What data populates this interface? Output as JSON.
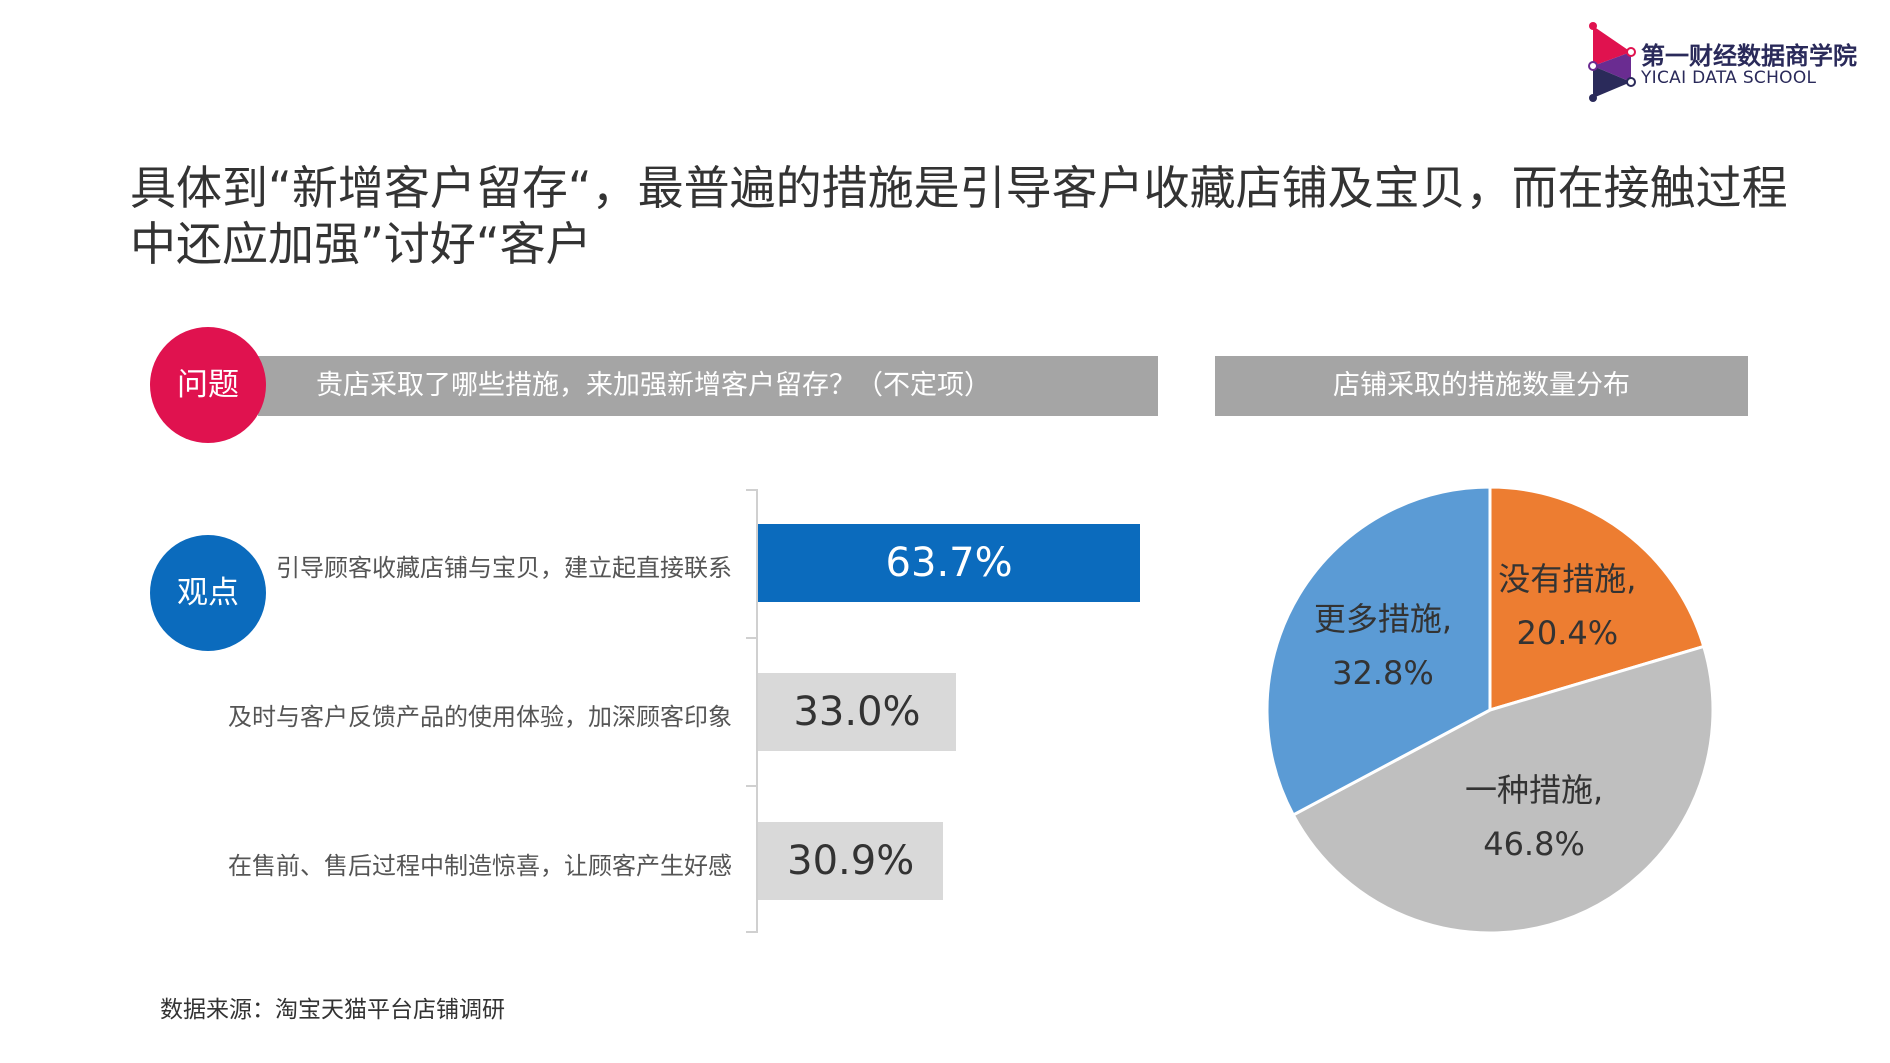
{
  "logo": {
    "name_cn": "第一财经数据商学院",
    "name_en": "YICAI DATA SCHOOL",
    "colors": [
      "#e0124f",
      "#6a2c91",
      "#2a2a5a"
    ]
  },
  "headline": "具体到“新增客户留存“，最普遍的措施是引导客户收藏店铺及宝贝，而在接触过程中还应加强”讨好“客户",
  "question_badge": "问题",
  "question_text": "贵店采取了哪些措施，来加强新增客户留存？（不定项）",
  "opinion_badge": "观点",
  "right_header": "店铺采取的措施数量分布",
  "source": "数据来源：淘宝天猫平台店铺调研",
  "colors": {
    "question_red": "#e0124f",
    "opinion_blue": "#0b6bbd",
    "header_gray": "#a5a5a5",
    "bar_highlight": "#0b6bbd",
    "bar_normal": "#d9d9d9",
    "pie_orange": "#ed7d31",
    "pie_gray": "#bfbfbf",
    "pie_blue": "#5b9bd5"
  },
  "chart_data": [
    {
      "type": "bar",
      "orientation": "horizontal",
      "categories": [
        "引导顾客收藏店铺与宝贝，建立起直接联系",
        "及时与客户反馈产品的使用体验，加深顾客印象",
        "在售前、售后过程中制造惊喜，让顾客产生好感"
      ],
      "values": [
        63.7,
        33.0,
        30.9
      ],
      "labels": [
        "63.7%",
        "33.0%",
        "30.9%"
      ],
      "unit": "%",
      "xlim": [
        0,
        100
      ],
      "highlight_index": 0
    },
    {
      "type": "pie",
      "title": "店铺采取的措施数量分布",
      "slices": [
        {
          "name": "没有措施",
          "value": 20.4,
          "label": "20.4%",
          "color": "#ed7d31"
        },
        {
          "name": "一种措施",
          "value": 46.8,
          "label": "46.8%",
          "color": "#bfbfbf"
        },
        {
          "name": "更多措施",
          "value": 32.8,
          "label": "32.8%",
          "color": "#5b9bd5"
        }
      ],
      "start_angle_deg": 0,
      "direction": "clockwise"
    }
  ]
}
